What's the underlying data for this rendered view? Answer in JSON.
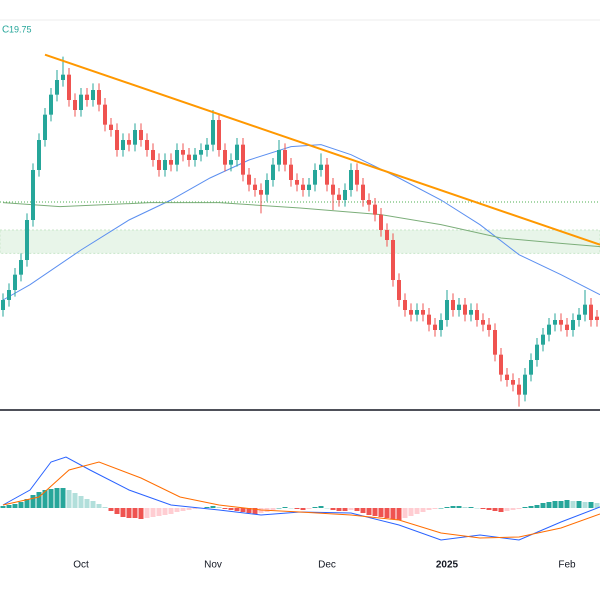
{
  "chart_data": [
    {
      "type": "candlestick",
      "close_label": "C",
      "close_value": 19.75,
      "categories": [
        null,
        null,
        null,
        null,
        null,
        null,
        null,
        null,
        null,
        null,
        null,
        null,
        null,
        "Oct",
        null,
        null,
        null,
        null,
        null,
        null,
        null,
        null,
        null,
        null,
        null,
        null,
        null,
        null,
        null,
        null,
        null,
        null,
        null,
        null,
        null,
        "Nov",
        null,
        null,
        null,
        null,
        null,
        null,
        null,
        null,
        null,
        null,
        null,
        null,
        null,
        null,
        null,
        null,
        null,
        null,
        "Dec",
        null,
        null,
        null,
        null,
        null,
        null,
        null,
        null,
        null,
        null,
        null,
        null,
        null,
        null,
        null,
        null,
        null,
        null,
        null,
        "2025",
        null,
        null,
        null,
        null,
        null,
        null,
        null,
        null,
        null,
        null,
        null,
        null,
        null,
        null,
        null,
        null,
        null,
        null,
        null,
        "Feb",
        null,
        null,
        null,
        null,
        null
      ],
      "open": [
        19.9,
        20.05,
        20.2,
        20.43,
        20.65,
        21.25,
        22.0,
        22.45,
        22.83,
        23.13,
        23.35,
        23.43,
        23.05,
        22.9,
        23.13,
        23.05,
        23.2,
        22.98,
        22.68,
        22.6,
        22.3,
        22.45,
        22.38,
        22.6,
        22.45,
        22.3,
        22.15,
        22.0,
        22.15,
        22.08,
        22.3,
        22.23,
        22.15,
        22.23,
        22.3,
        22.38,
        22.75,
        22.3,
        22.08,
        22.15,
        22.38,
        21.93,
        21.78,
        21.7,
        21.63,
        21.85,
        22.08,
        22.3,
        22.08,
        21.85,
        21.78,
        21.7,
        21.78,
        22.0,
        22.08,
        21.78,
        21.63,
        21.55,
        21.7,
        22.0,
        21.78,
        21.55,
        21.48,
        21.33,
        21.1,
        20.95,
        20.35,
        20.05,
        19.9,
        19.83,
        19.9,
        19.83,
        19.68,
        19.6,
        19.75,
        20.05,
        19.9,
        19.98,
        19.83,
        19.9,
        19.75,
        19.68,
        19.6,
        19.23,
        18.93,
        18.85,
        18.78,
        18.63,
        18.93,
        19.15,
        19.38,
        19.53,
        19.68,
        19.75,
        19.68,
        19.6,
        19.75,
        19.83,
        19.98,
        19.8
      ],
      "high": [
        20.15,
        20.3,
        20.53,
        20.75,
        21.35,
        22.1,
        22.55,
        22.93,
        23.23,
        23.5,
        23.7,
        23.53,
        23.15,
        23.23,
        23.23,
        23.3,
        23.3,
        23.08,
        22.78,
        22.7,
        22.55,
        22.55,
        22.7,
        22.7,
        22.55,
        22.4,
        22.25,
        22.25,
        22.25,
        22.4,
        22.4,
        22.33,
        22.33,
        22.4,
        22.48,
        22.9,
        22.85,
        22.4,
        22.25,
        22.48,
        22.48,
        22.03,
        21.88,
        21.8,
        21.95,
        22.18,
        22.45,
        22.4,
        22.18,
        21.95,
        21.88,
        21.88,
        22.1,
        22.25,
        22.18,
        21.88,
        21.73,
        21.8,
        22.1,
        22.1,
        21.88,
        21.65,
        21.58,
        21.43,
        21.2,
        21.05,
        20.45,
        20.15,
        20.0,
        20.0,
        20.0,
        19.93,
        19.78,
        19.85,
        20.2,
        20.15,
        20.08,
        20.08,
        20.0,
        20.0,
        19.85,
        19.78,
        19.7,
        19.33,
        19.03,
        18.95,
        18.88,
        19.03,
        19.25,
        19.48,
        19.63,
        19.78,
        19.85,
        19.85,
        19.78,
        19.85,
        19.93,
        20.2,
        20.08,
        19.9
      ],
      "low": [
        19.8,
        19.95,
        20.1,
        20.33,
        20.55,
        21.15,
        21.9,
        22.35,
        22.73,
        23.03,
        23.25,
        22.95,
        22.8,
        22.8,
        22.95,
        22.95,
        22.88,
        22.58,
        22.5,
        22.2,
        22.2,
        22.28,
        22.28,
        22.35,
        22.2,
        22.05,
        21.9,
        21.9,
        21.98,
        21.98,
        22.13,
        22.05,
        22.05,
        22.13,
        22.2,
        22.28,
        22.2,
        21.98,
        21.98,
        22.05,
        21.83,
        21.68,
        21.6,
        21.35,
        21.53,
        21.75,
        21.98,
        21.98,
        21.75,
        21.68,
        21.6,
        21.6,
        21.68,
        21.9,
        21.68,
        21.4,
        21.45,
        21.45,
        21.6,
        21.68,
        21.45,
        21.38,
        21.23,
        21.0,
        20.85,
        20.25,
        19.95,
        19.8,
        19.73,
        19.73,
        19.73,
        19.58,
        19.5,
        19.5,
        19.65,
        19.8,
        19.8,
        19.73,
        19.73,
        19.65,
        19.58,
        19.5,
        19.13,
        18.83,
        18.75,
        18.68,
        18.45,
        18.53,
        18.83,
        19.05,
        19.28,
        19.43,
        19.58,
        19.58,
        19.5,
        19.5,
        19.65,
        19.73,
        19.65,
        19.65
      ],
      "close": [
        20.05,
        20.2,
        20.43,
        20.65,
        21.25,
        22.0,
        22.45,
        22.83,
        23.13,
        23.35,
        23.43,
        23.05,
        22.9,
        23.13,
        23.05,
        23.2,
        22.98,
        22.68,
        22.6,
        22.3,
        22.45,
        22.38,
        22.6,
        22.45,
        22.3,
        22.15,
        22.0,
        22.15,
        22.08,
        22.3,
        22.23,
        22.15,
        22.23,
        22.3,
        22.38,
        22.75,
        22.3,
        22.08,
        22.15,
        22.38,
        21.93,
        21.78,
        21.7,
        21.63,
        21.85,
        22.08,
        22.3,
        22.08,
        21.85,
        21.78,
        21.7,
        21.78,
        22.0,
        22.08,
        21.78,
        21.63,
        21.55,
        21.7,
        22.0,
        21.78,
        21.55,
        21.48,
        21.33,
        21.1,
        20.95,
        20.35,
        20.05,
        19.9,
        19.83,
        19.9,
        19.83,
        19.68,
        19.6,
        19.75,
        20.05,
        19.9,
        19.98,
        19.83,
        19.9,
        19.75,
        19.68,
        19.6,
        19.23,
        18.93,
        18.85,
        18.78,
        18.63,
        18.93,
        19.15,
        19.38,
        19.53,
        19.68,
        19.75,
        19.68,
        19.6,
        19.75,
        19.83,
        19.98,
        19.75,
        19.75
      ],
      "up_color": "#26a69a",
      "down_color": "#ef5350",
      "ylim": [
        18.4,
        24.55
      ],
      "series": [
        {
          "color": "#5b8ff0",
          "x": [
            0,
            4.5,
            13,
            21,
            28,
            34.5,
            41,
            48,
            53,
            58,
            66,
            73,
            79.5,
            86,
            93,
            99.5
          ],
          "values": [
            20.05,
            20.28,
            20.8,
            21.25,
            21.55,
            21.88,
            22.15,
            22.35,
            22.38,
            22.23,
            21.88,
            21.55,
            21.18,
            20.73,
            20.43,
            20.13
          ]
        },
        {
          "color": "#7cae7a",
          "x": [
            0,
            9.5,
            24.5,
            36,
            49.5,
            63,
            73,
            83,
            93,
            99.5
          ],
          "values": [
            21.51,
            21.45,
            21.51,
            21.51,
            21.43,
            21.33,
            21.18,
            20.98,
            20.9,
            20.85
          ]
        }
      ],
      "trendline": {
        "color": "#ff9800",
        "x": [
          7,
          99.5
        ],
        "values": [
          23.73,
          20.88
        ]
      },
      "hline": {
        "value": 21.52,
        "color": "#4caf50"
      },
      "band": {
        "values": [
          20.75,
          21.1
        ],
        "color": "#e8f5e9"
      }
    },
    {
      "type": "macd",
      "ylim": [
        -0.47,
        0.96
      ],
      "histogram": [
        0.02,
        0.03,
        0.04,
        0.06,
        0.09,
        0.13,
        0.16,
        0.18,
        0.19,
        0.2,
        0.2,
        0.18,
        0.15,
        0.12,
        0.09,
        0.07,
        0.04,
        0.01,
        -0.03,
        -0.06,
        -0.09,
        -0.1,
        -0.1,
        -0.11,
        -0.1,
        -0.09,
        -0.08,
        -0.07,
        -0.06,
        -0.04,
        -0.03,
        -0.02,
        -0.01,
        0.0,
        0.01,
        0.02,
        0.01,
        -0.01,
        -0.02,
        -0.03,
        -0.04,
        -0.05,
        -0.06,
        -0.05,
        -0.04,
        -0.02,
        0.0,
        0.01,
        0.0,
        -0.01,
        -0.02,
        -0.01,
        0.01,
        0.02,
        0.0,
        -0.02,
        -0.03,
        -0.03,
        -0.02,
        -0.03,
        -0.05,
        -0.07,
        -0.08,
        -0.09,
        -0.1,
        -0.11,
        -0.12,
        -0.1,
        -0.08,
        -0.06,
        -0.04,
        -0.02,
        -0.01,
        0.0,
        0.01,
        0.02,
        0.02,
        0.01,
        0.01,
        0.0,
        -0.01,
        -0.02,
        -0.03,
        -0.04,
        -0.03,
        -0.02,
        -0.01,
        0.01,
        0.02,
        0.03,
        0.05,
        0.06,
        0.07,
        0.07,
        0.08,
        0.07,
        0.07,
        0.06,
        0.06,
        0.05
      ],
      "hist_colors": {
        "up_grow": "#26a69a",
        "up_fall": "#b2dfdb",
        "down_grow": "#ef5350",
        "down_fall": "#ffcdd2"
      },
      "series": [
        {
          "color": "#2962ff",
          "x": [
            0,
            4.5,
            8,
            10.5,
            14.5,
            21,
            28,
            36,
            43,
            49.5,
            58,
            66,
            73,
            79.5,
            86,
            93,
            99.5
          ],
          "values": [
            0.03,
            0.18,
            0.46,
            0.51,
            0.38,
            0.18,
            0.03,
            -0.02,
            -0.07,
            -0.04,
            -0.05,
            -0.17,
            -0.32,
            -0.27,
            -0.32,
            -0.14,
            0.01
          ]
        },
        {
          "color": "#ff6d00",
          "x": [
            0,
            6,
            11,
            16,
            23,
            29.5,
            36,
            43,
            49.5,
            58,
            66,
            73,
            79.5,
            86,
            93,
            99.5
          ],
          "values": [
            0.03,
            0.11,
            0.38,
            0.46,
            0.3,
            0.11,
            0.03,
            -0.02,
            -0.04,
            -0.07,
            -0.12,
            -0.25,
            -0.3,
            -0.29,
            -0.2,
            -0.06
          ]
        }
      ]
    }
  ]
}
